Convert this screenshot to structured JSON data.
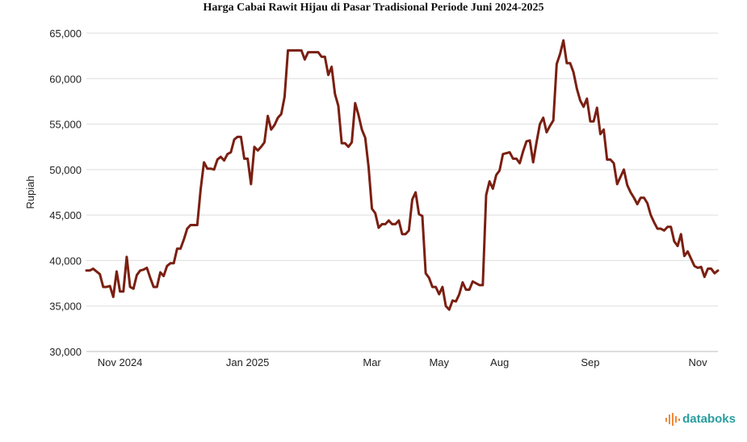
{
  "chart_data": {
    "type": "line",
    "title": "Harga Cabai Rawit Hijau di Pasar Tradisional Periode Juni 2024-2025",
    "xlabel": "",
    "ylabel": "Rupiah",
    "ylim": [
      30000,
      65000
    ],
    "yticks": [
      30000,
      35000,
      40000,
      45000,
      50000,
      55000,
      60000,
      65000
    ],
    "ytick_labels": [
      "30,000",
      "35,000",
      "40,000",
      "45,000",
      "50,000",
      "55,000",
      "60,000",
      "65,000"
    ],
    "xtick_labels": [
      "Nov 2024",
      "Jan 2025",
      "Mar",
      "May",
      "Aug",
      "Sep",
      "Nov"
    ],
    "xtick_index": [
      10,
      48,
      85,
      105,
      123,
      150,
      182
    ],
    "grid": "horizontal",
    "line_color": "#7a1f12",
    "values": [
      38900,
      38900,
      39100,
      38800,
      38500,
      37100,
      37100,
      37200,
      36000,
      38800,
      36600,
      36600,
      40400,
      37100,
      36900,
      38400,
      38900,
      39000,
      39200,
      38100,
      37100,
      37100,
      38700,
      38300,
      39400,
      39700,
      39700,
      41300,
      41300,
      42300,
      43500,
      43900,
      43900,
      43900,
      47800,
      50800,
      50100,
      50100,
      50000,
      51100,
      51400,
      51000,
      51700,
      51900,
      53300,
      53600,
      53600,
      51200,
      51200,
      48400,
      52500,
      52100,
      52500,
      53000,
      55900,
      54400,
      54900,
      55700,
      56100,
      58000,
      63100,
      63100,
      63100,
      63100,
      63100,
      62100,
      62900,
      62900,
      62900,
      62900,
      62400,
      62400,
      60400,
      61300,
      58300,
      57000,
      52900,
      52900,
      52500,
      53000,
      57300,
      56000,
      54400,
      53500,
      50300,
      45700,
      45200,
      43600,
      44000,
      44000,
      44400,
      44000,
      44000,
      44400,
      42900,
      42900,
      43300,
      46700,
      47500,
      45100,
      44900,
      38600,
      38100,
      37100,
      37100,
      36300,
      37100,
      35000,
      34600,
      35600,
      35500,
      36300,
      37600,
      36800,
      36800,
      37700,
      37500,
      37300,
      37300,
      47200,
      48700,
      47900,
      49400,
      49900,
      51700,
      51800,
      51900,
      51200,
      51200,
      50700,
      52000,
      53100,
      53200,
      50800,
      53000,
      55000,
      55700,
      54100,
      54800,
      55400,
      61600,
      62700,
      64200,
      61700,
      61700,
      60700,
      58900,
      57600,
      56900,
      57800,
      55300,
      55300,
      56800,
      53900,
      54400,
      51100,
      51100,
      50700,
      48400,
      49200,
      50000,
      48300,
      47500,
      46900,
      46200,
      46900,
      46900,
      46300,
      45000,
      44200,
      43500,
      43500,
      43300,
      43700,
      43700,
      42100,
      41600,
      42900,
      40500,
      41000,
      40200,
      39400,
      39200,
      39300,
      38200,
      39100,
      39100,
      38600,
      38900
    ]
  },
  "brand": {
    "name": "databoks"
  }
}
